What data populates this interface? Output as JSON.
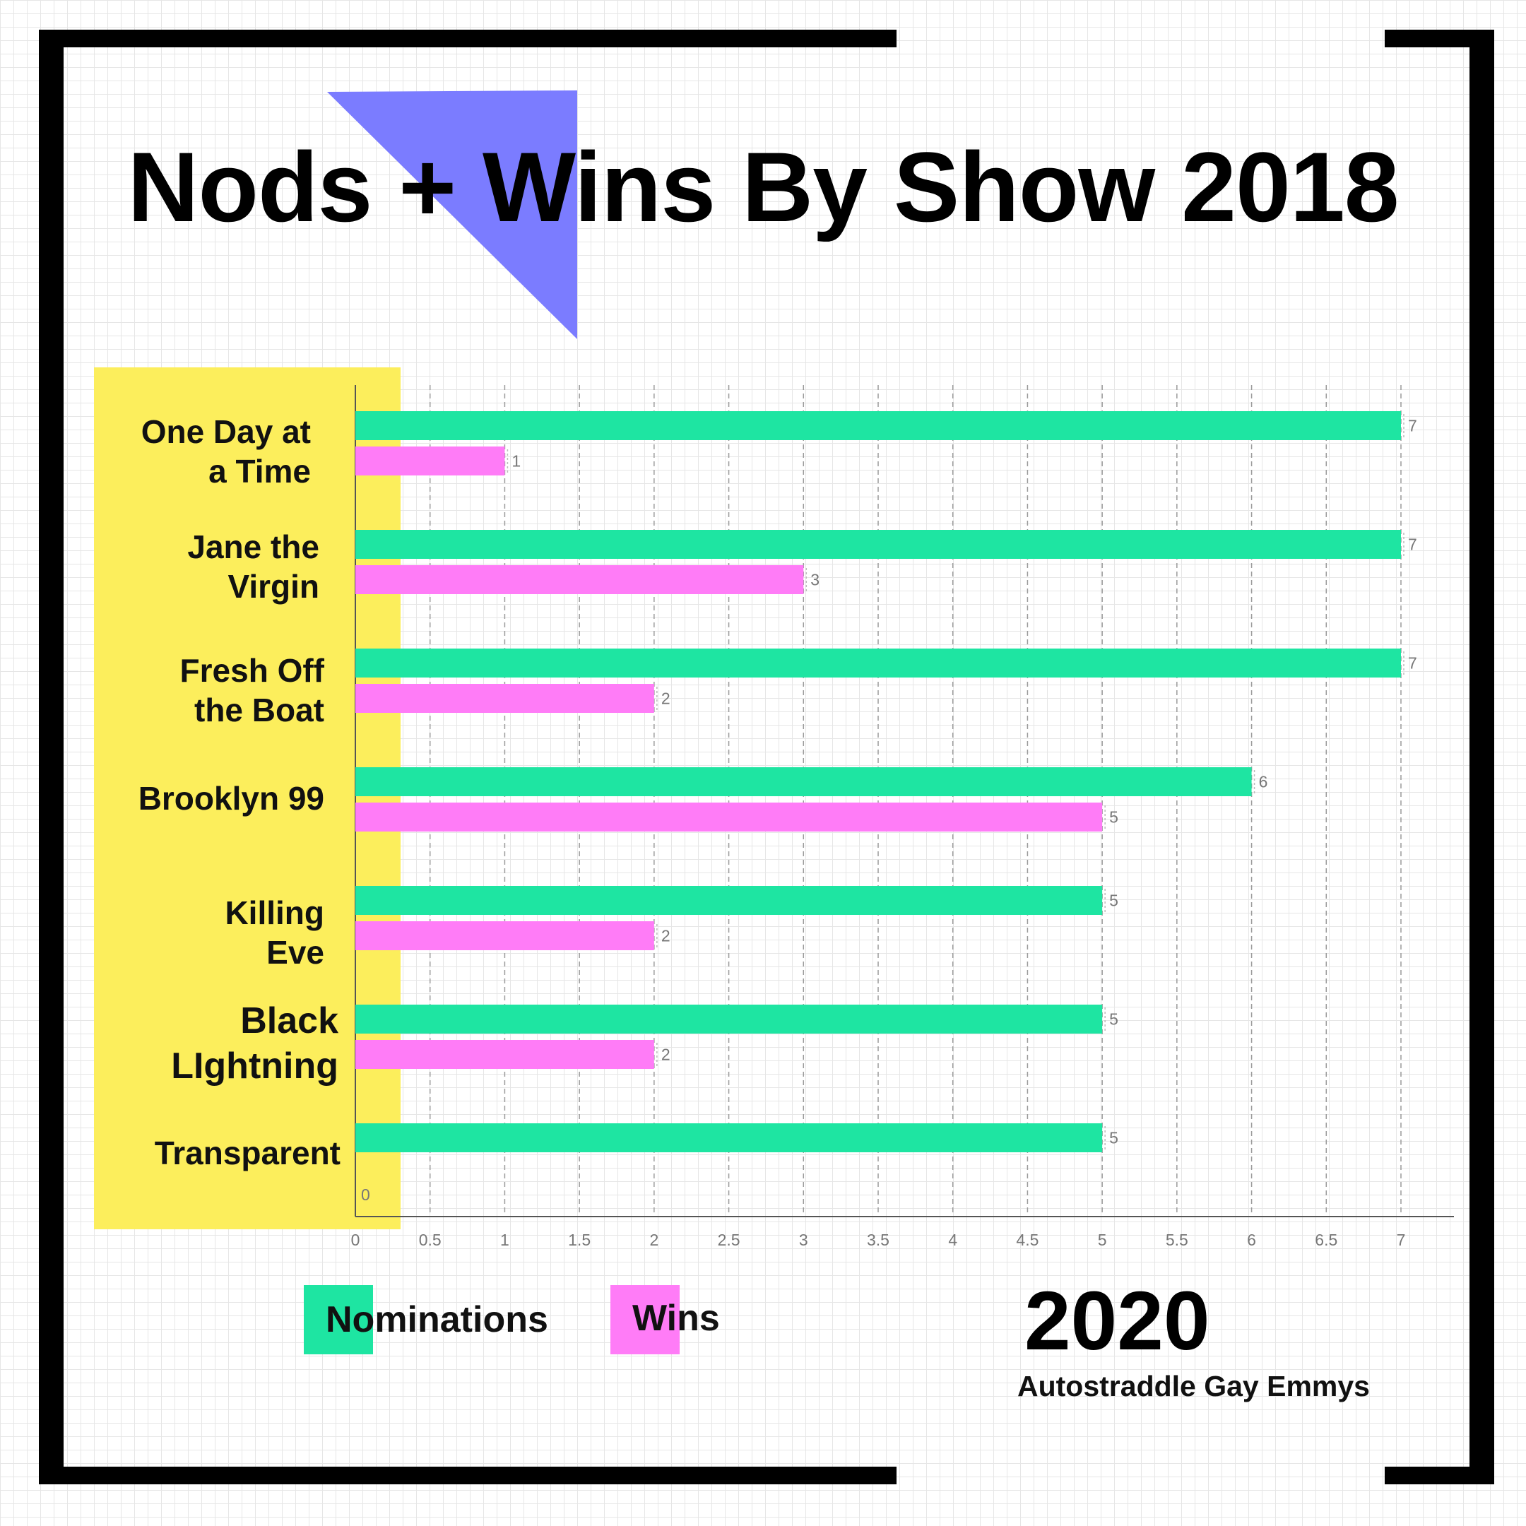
{
  "title": "Nods + Wins By Show 2018",
  "year": "2020",
  "source": "Autostraddle Gay Emmys",
  "colors": {
    "nominations": "#1ee5a2",
    "wins": "#ff7cf7",
    "label_panel": "#fcee5c",
    "title_triangle": "#7b7cff",
    "frame": "#000000"
  },
  "legend": [
    {
      "name": "Nominations",
      "color": "#1ee5a2"
    },
    {
      "name": "Wins",
      "color": "#ff7cf7"
    }
  ],
  "chart_data": {
    "type": "bar",
    "orientation": "horizontal",
    "title": "Nods + Wins By Show 2018",
    "categories": [
      "One Day at\na Time",
      "Jane the\nVirgin",
      "Fresh Off\nthe Boat",
      "Brooklyn 99",
      "Killing\nEve",
      "Black\nLIghtning",
      "Transparent"
    ],
    "series": [
      {
        "name": "Nominations",
        "color": "#1ee5a2",
        "values": [
          7,
          7,
          7,
          6,
          5,
          5,
          5
        ]
      },
      {
        "name": "Wins",
        "color": "#ff7cf7",
        "values": [
          1,
          3,
          2,
          5,
          2,
          2,
          0
        ]
      }
    ],
    "xlim": [
      0,
      7
    ],
    "xticks": [
      "0",
      "0.5",
      "1",
      "1.5",
      "2",
      "2.5",
      "3",
      "3.5",
      "4",
      "4.5",
      "5",
      "5.5",
      "6",
      "6.5",
      "7"
    ],
    "xlabel": "",
    "ylabel": "",
    "grid": "vertical dashed",
    "legend_position": "bottom-left"
  }
}
